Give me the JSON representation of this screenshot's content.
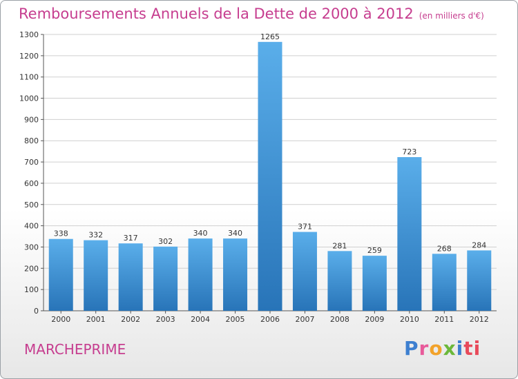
{
  "title": "Remboursements Annuels de la Dette de 2000 à 2012",
  "subtitle": "(en milliers d'€)",
  "city": "MARCHEPRIME",
  "logo": {
    "text": "Proxiti",
    "letters": [
      "P",
      "r",
      "o",
      "x",
      "i",
      "ti"
    ]
  },
  "colors": {
    "title": "#c63d8f",
    "bar_top": "#5aaeea",
    "bar_bottom": "#2874b8",
    "grid": "#cfcfcf"
  },
  "chart_data": {
    "type": "bar",
    "title": "Remboursements Annuels de la Dette de 2000 à 2012",
    "subtitle": "(en milliers d'€)",
    "categories": [
      "2000",
      "2001",
      "2002",
      "2003",
      "2004",
      "2005",
      "2006",
      "2007",
      "2008",
      "2009",
      "2010",
      "2011",
      "2012"
    ],
    "values": [
      338,
      332,
      317,
      302,
      340,
      340,
      1265,
      371,
      281,
      259,
      723,
      268,
      284
    ],
    "ylim": [
      0,
      1300
    ],
    "yticks": [
      0,
      100,
      200,
      300,
      400,
      500,
      600,
      700,
      800,
      900,
      1000,
      1100,
      1200,
      1300
    ],
    "grid": true,
    "data_labels": true
  }
}
